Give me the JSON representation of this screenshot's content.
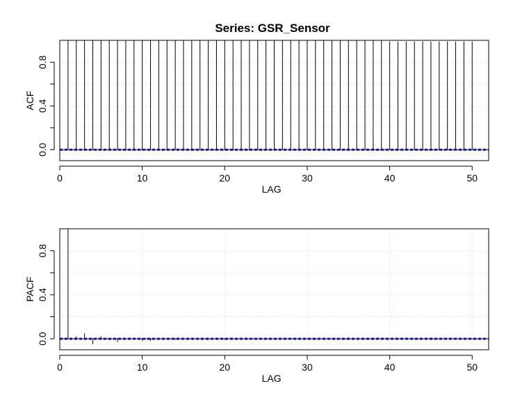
{
  "chart_data": [
    {
      "type": "bar",
      "title": "Series:  GSR_Sensor",
      "xlabel": "LAG",
      "ylabel": "ACF",
      "xlim": [
        0,
        52
      ],
      "ylim": [
        -0.1,
        1.0
      ],
      "xticks": [
        0,
        10,
        20,
        30,
        40,
        50
      ],
      "yticks": [
        0.0,
        0.4,
        0.8
      ],
      "yticks_minor": [
        0.2,
        0.6
      ],
      "grid": true,
      "conf_limit": 0.006,
      "x": [
        1,
        2,
        3,
        4,
        5,
        6,
        7,
        8,
        9,
        10,
        11,
        12,
        13,
        14,
        15,
        16,
        17,
        18,
        19,
        20,
        21,
        22,
        23,
        24,
        25,
        26,
        27,
        28,
        29,
        30,
        31,
        32,
        33,
        34,
        35,
        36,
        37,
        38,
        39,
        40,
        41,
        42,
        43,
        44,
        45,
        46,
        47,
        48,
        49,
        50
      ],
      "values": [
        1.0,
        1.0,
        1.0,
        1.0,
        1.0,
        1.0,
        1.0,
        1.0,
        1.0,
        1.0,
        1.0,
        1.0,
        1.0,
        1.0,
        1.0,
        1.0,
        1.0,
        1.0,
        1.0,
        1.0,
        1.0,
        1.0,
        1.0,
        1.0,
        1.0,
        1.0,
        1.0,
        1.0,
        1.0,
        1.0,
        1.0,
        1.0,
        1.0,
        1.0,
        1.0,
        1.0,
        1.0,
        1.0,
        1.0,
        0.99,
        0.99,
        0.99,
        0.99,
        0.99,
        0.99,
        0.99,
        0.99,
        0.99,
        0.99,
        0.99
      ]
    },
    {
      "type": "bar",
      "title": "",
      "xlabel": "LAG",
      "ylabel": "PACF",
      "xlim": [
        0,
        52
      ],
      "ylim": [
        -0.1,
        1.0
      ],
      "xticks": [
        0,
        10,
        20,
        30,
        40,
        50
      ],
      "yticks": [
        0.0,
        0.4,
        0.8
      ],
      "yticks_minor": [
        0.2,
        0.6
      ],
      "grid": true,
      "conf_limit": 0.006,
      "x": [
        1,
        2,
        3,
        4,
        5,
        6,
        7,
        8,
        9,
        10,
        11,
        12,
        13,
        14,
        15,
        16,
        17,
        18,
        19,
        20,
        21,
        22,
        23,
        24,
        25,
        26,
        27,
        28,
        29,
        30,
        31,
        32,
        33,
        34,
        35,
        36,
        37,
        38,
        39,
        40,
        41,
        42,
        43,
        44,
        45,
        46,
        47,
        48,
        49,
        50
      ],
      "values": [
        1.0,
        0.02,
        0.05,
        -0.05,
        0.02,
        -0.01,
        -0.03,
        0.0,
        0.0,
        -0.02,
        -0.02,
        0.0,
        0.0,
        -0.01,
        0.0,
        0.0,
        0.0,
        -0.01,
        0.0,
        -0.01,
        0.0,
        0.0,
        0.0,
        0.0,
        0.0,
        0.0,
        0.0,
        0.0,
        0.0,
        0.0,
        -0.01,
        0.0,
        0.0,
        0.0,
        0.01,
        0.0,
        0.0,
        -0.01,
        0.0,
        0.0,
        0.0,
        0.0,
        0.0,
        0.0,
        0.01,
        0.0,
        0.0,
        0.0,
        0.0,
        0.0
      ]
    }
  ]
}
